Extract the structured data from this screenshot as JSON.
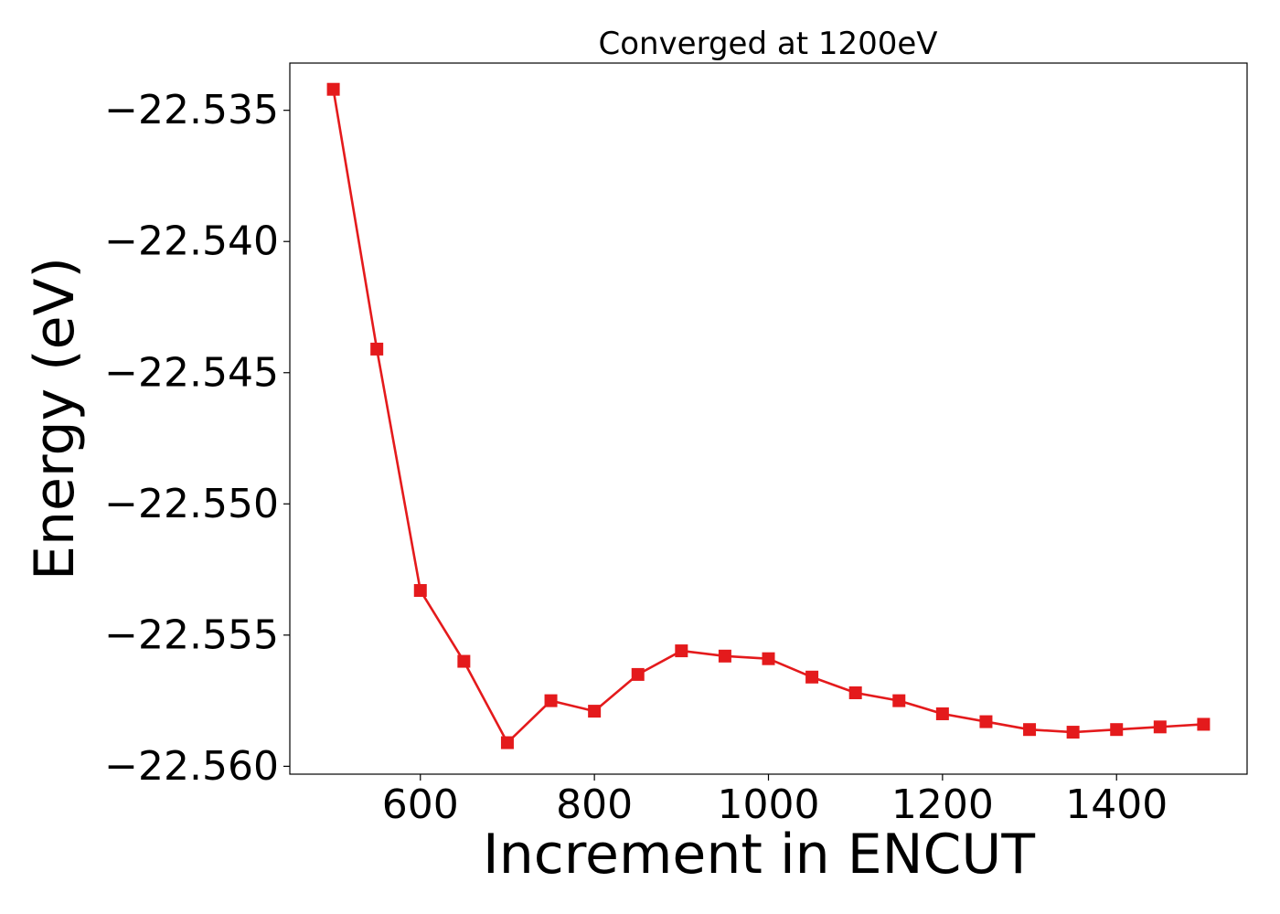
{
  "chart_data": {
    "type": "line",
    "title": "Converged at 1200eV",
    "xlabel": "Increment in ENCUT",
    "ylabel": "Energy (eV)",
    "xlim": [
      450,
      1550
    ],
    "ylim": [
      -22.5603,
      -22.5332
    ],
    "xticks": [
      600,
      800,
      1000,
      1200,
      1400
    ],
    "xtick_labels": [
      "600",
      "800",
      "1000",
      "1200",
      "1400"
    ],
    "yticks": [
      -22.535,
      -22.54,
      -22.545,
      -22.55,
      -22.555,
      -22.56
    ],
    "ytick_labels": [
      "−22.535",
      "−22.540",
      "−22.545",
      "−22.550",
      "−22.555",
      "−22.560"
    ],
    "grid": false,
    "marker": "square",
    "series": [
      {
        "color": "#e41a1c",
        "x": [
          500,
          550,
          600,
          650,
          700,
          750,
          800,
          850,
          900,
          950,
          1000,
          1050,
          1100,
          1150,
          1200,
          1250,
          1300,
          1350,
          1400,
          1450,
          1500
        ],
        "y": [
          -22.5342,
          -22.5441,
          -22.5533,
          -22.556,
          -22.5591,
          -22.5575,
          -22.5579,
          -22.5565,
          -22.5556,
          -22.5558,
          -22.5559,
          -22.5566,
          -22.5572,
          -22.5575,
          -22.558,
          -22.5583,
          -22.5586,
          -22.5587,
          -22.5586,
          -22.5585,
          -22.5584
        ]
      }
    ]
  }
}
